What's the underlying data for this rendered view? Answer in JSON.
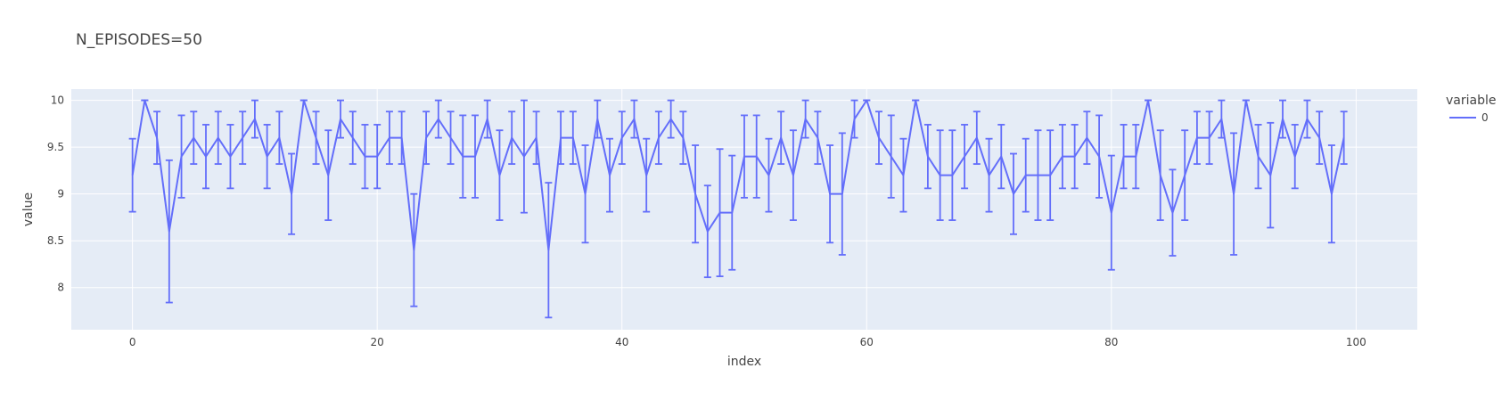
{
  "chart_data": {
    "type": "line",
    "title": "N_EPISODES=50",
    "xlabel": "index",
    "ylabel": "value",
    "legend": {
      "title": "variable",
      "placement": "top-right outside"
    },
    "xlim": [
      -5,
      105
    ],
    "ylim": [
      7.55,
      10.12
    ],
    "x_ticks": [
      0,
      20,
      40,
      60,
      80,
      100
    ],
    "y_ticks": [
      8,
      8.5,
      9,
      9.5,
      10
    ],
    "y_tick_labels": [
      "8",
      "8.5",
      "9",
      "9.5",
      "10"
    ],
    "grid": true,
    "colors": {
      "plot_bg": "#E5ECF6",
      "grid": "#FFFFFF",
      "series": "#636EFA"
    },
    "series": [
      {
        "name": "0",
        "x": [
          0,
          1,
          2,
          3,
          4,
          5,
          6,
          7,
          8,
          9,
          10,
          11,
          12,
          13,
          14,
          15,
          16,
          17,
          18,
          19,
          20,
          21,
          22,
          23,
          24,
          25,
          26,
          27,
          28,
          29,
          30,
          31,
          32,
          33,
          34,
          35,
          36,
          37,
          38,
          39,
          40,
          41,
          42,
          43,
          44,
          45,
          46,
          47,
          48,
          49,
          50,
          51,
          52,
          53,
          54,
          55,
          56,
          57,
          58,
          59,
          60,
          61,
          62,
          63,
          64,
          65,
          66,
          67,
          68,
          69,
          70,
          71,
          72,
          73,
          74,
          75,
          76,
          77,
          78,
          79,
          80,
          81,
          82,
          83,
          84,
          85,
          86,
          87,
          88,
          89,
          90,
          91,
          92,
          93,
          94,
          95,
          96,
          97,
          98,
          99
        ],
        "values": [
          9.2,
          10.0,
          9.6,
          8.6,
          9.4,
          9.6,
          9.4,
          9.6,
          9.4,
          9.6,
          9.8,
          9.4,
          9.6,
          9.0,
          10.0,
          9.6,
          9.2,
          9.8,
          9.6,
          9.4,
          9.4,
          9.6,
          9.6,
          8.4,
          9.6,
          9.8,
          9.6,
          9.4,
          9.4,
          9.8,
          9.2,
          9.6,
          9.4,
          9.6,
          8.4,
          9.6,
          9.6,
          9.0,
          9.8,
          9.2,
          9.6,
          9.8,
          9.2,
          9.6,
          9.8,
          9.6,
          9.0,
          8.6,
          8.8,
          8.8,
          9.4,
          9.4,
          9.2,
          9.6,
          9.2,
          9.8,
          9.6,
          9.0,
          9.0,
          9.8,
          10.0,
          9.6,
          9.4,
          9.2,
          10.0,
          9.4,
          9.2,
          9.2,
          9.4,
          9.6,
          9.2,
          9.4,
          9.0,
          9.2,
          9.2,
          9.2,
          9.4,
          9.4,
          9.6,
          9.4,
          8.8,
          9.4,
          9.4,
          10.0,
          9.2,
          8.8,
          9.2,
          9.6,
          9.6,
          9.8,
          9.0,
          10.0,
          9.4,
          9.2,
          9.8,
          9.4,
          9.8,
          9.6,
          9.0,
          9.6
        ],
        "errors": [
          0.39,
          0.0,
          0.28,
          0.76,
          0.44,
          0.28,
          0.34,
          0.28,
          0.34,
          0.28,
          0.2,
          0.34,
          0.28,
          0.43,
          0.0,
          0.28,
          0.48,
          0.2,
          0.28,
          0.34,
          0.34,
          0.28,
          0.28,
          0.6,
          0.28,
          0.2,
          0.28,
          0.44,
          0.44,
          0.2,
          0.48,
          0.28,
          0.6,
          0.28,
          0.72,
          0.28,
          0.28,
          0.52,
          0.2,
          0.39,
          0.28,
          0.2,
          0.39,
          0.28,
          0.2,
          0.28,
          0.52,
          0.49,
          0.68,
          0.61,
          0.44,
          0.44,
          0.39,
          0.28,
          0.48,
          0.2,
          0.28,
          0.52,
          0.65,
          0.2,
          0.0,
          0.28,
          0.44,
          0.39,
          0.0,
          0.34,
          0.48,
          0.48,
          0.34,
          0.28,
          0.39,
          0.34,
          0.43,
          0.39,
          0.48,
          0.48,
          0.34,
          0.34,
          0.28,
          0.44,
          0.61,
          0.34,
          0.34,
          0.0,
          0.48,
          0.46,
          0.48,
          0.28,
          0.28,
          0.2,
          0.65,
          0.0,
          0.34,
          0.56,
          0.2,
          0.34,
          0.2,
          0.28,
          0.52,
          0.28
        ]
      }
    ]
  }
}
